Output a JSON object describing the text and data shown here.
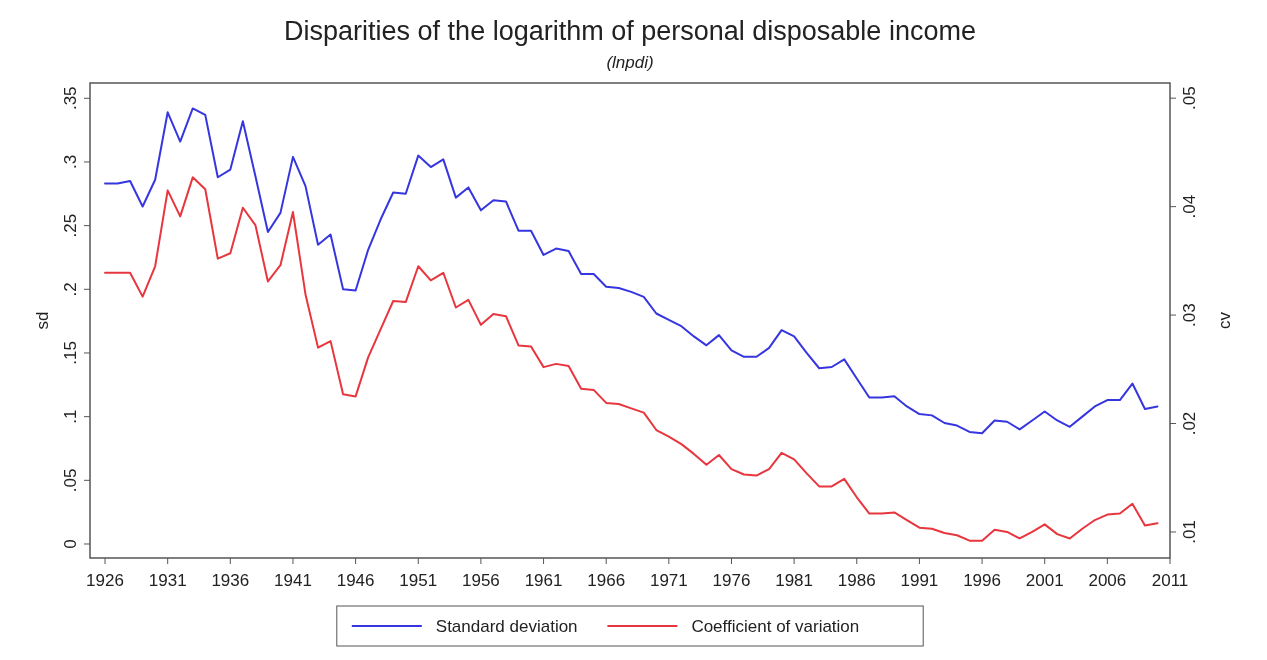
{
  "chart_data": {
    "type": "line",
    "title": "Disparities of the logarithm of personal disposable income",
    "subtitle": "(lnpdi)",
    "ylabel": "sd",
    "y2label": "cv",
    "x": [
      1926,
      1927,
      1928,
      1929,
      1930,
      1931,
      1932,
      1933,
      1934,
      1935,
      1936,
      1937,
      1938,
      1939,
      1940,
      1941,
      1942,
      1943,
      1944,
      1945,
      1946,
      1947,
      1948,
      1949,
      1950,
      1951,
      1952,
      1953,
      1954,
      1955,
      1956,
      1957,
      1958,
      1959,
      1960,
      1961,
      1962,
      1963,
      1964,
      1965,
      1966,
      1967,
      1968,
      1969,
      1970,
      1971,
      1972,
      1973,
      1974,
      1975,
      1976,
      1977,
      1978,
      1979,
      1980,
      1981,
      1982,
      1983,
      1984,
      1985,
      1986,
      1987,
      1988,
      1989,
      1990,
      1991,
      1992,
      1993,
      1994,
      1995,
      1996,
      1997,
      1998,
      1999,
      2000,
      2001,
      2002,
      2003,
      2004,
      2005,
      2006,
      2007,
      2008,
      2009,
      2010
    ],
    "series": [
      {
        "name": "Standard deviation",
        "color": "#3636e0",
        "values": [
          0.283,
          0.283,
          0.285,
          0.265,
          0.286,
          0.339,
          0.316,
          0.342,
          0.337,
          0.288,
          0.294,
          0.332,
          0.289,
          0.245,
          0.26,
          0.304,
          0.281,
          0.235,
          0.243,
          0.2,
          0.199,
          0.231,
          0.255,
          0.276,
          0.275,
          0.305,
          0.296,
          0.302,
          0.272,
          0.28,
          0.262,
          0.27,
          0.269,
          0.246,
          0.246,
          0.227,
          0.232,
          0.23,
          0.212,
          0.212,
          0.202,
          0.201,
          0.198,
          0.194,
          0.181,
          0.176,
          0.171,
          0.163,
          0.156,
          0.164,
          0.152,
          0.147,
          0.147,
          0.154,
          0.168,
          0.163,
          0.15,
          0.138,
          0.139,
          0.145,
          0.13,
          0.115,
          0.115,
          0.116,
          0.108,
          0.102,
          0.101,
          0.095,
          0.093,
          0.088,
          0.087,
          0.097,
          0.096,
          0.09,
          0.097,
          0.104,
          0.097,
          0.092,
          0.1,
          0.108,
          0.113,
          0.113,
          0.126,
          0.106,
          0.108
        ]
      },
      {
        "name": "Coefficient of variation",
        "color": "#e8363e",
        "axis": "y2",
        "values": [
          0.0339,
          0.0339,
          0.0339,
          0.0317,
          0.0345,
          0.0415,
          0.0391,
          0.0427,
          0.0416,
          0.0352,
          0.0357,
          0.0399,
          0.0383,
          0.0331,
          0.0346,
          0.0395,
          0.0319,
          0.027,
          0.0276,
          0.0227,
          0.0225,
          0.0261,
          0.0287,
          0.0313,
          0.0312,
          0.0345,
          0.0332,
          0.0339,
          0.0307,
          0.0314,
          0.0291,
          0.0301,
          0.0299,
          0.0272,
          0.0271,
          0.0252,
          0.0255,
          0.0253,
          0.0232,
          0.0231,
          0.0219,
          0.0218,
          0.0214,
          0.021,
          0.0194,
          0.0188,
          0.0181,
          0.0172,
          0.0162,
          0.0171,
          0.0158,
          0.0153,
          0.0152,
          0.0158,
          0.0173,
          0.0167,
          0.0154,
          0.0142,
          0.0142,
          0.0149,
          0.0132,
          0.0117,
          0.0117,
          0.0118,
          0.0111,
          0.0104,
          0.0103,
          0.0099,
          0.0097,
          0.0092,
          0.0092,
          0.0102,
          0.01,
          0.0094,
          0.01,
          0.0107,
          0.0098,
          0.0094,
          0.0103,
          0.0111,
          0.0116,
          0.0117,
          0.0126,
          0.0106,
          0.0108
        ]
      }
    ],
    "xlim": [
      1924.8,
      2011
    ],
    "xticks": [
      1926,
      1931,
      1936,
      1941,
      1946,
      1951,
      1956,
      1961,
      1966,
      1971,
      1976,
      1981,
      1986,
      1991,
      1996,
      2001,
      2006,
      2011
    ],
    "ylim": [
      -0.011,
      0.362
    ],
    "yticks": [
      {
        "value": 0,
        "label": "0"
      },
      {
        "value": 0.05,
        "label": ".05"
      },
      {
        "value": 0.1,
        "label": ".1"
      },
      {
        "value": 0.15,
        "label": ".15"
      },
      {
        "value": 0.2,
        "label": ".2"
      },
      {
        "value": 0.25,
        "label": ".25"
      },
      {
        "value": 0.3,
        "label": ".3"
      },
      {
        "value": 0.35,
        "label": ".35"
      }
    ],
    "y2lim": [
      0.0076,
      0.0514
    ],
    "y2ticks": [
      {
        "value": 0.01,
        "label": ".01"
      },
      {
        "value": 0.02,
        "label": ".02"
      },
      {
        "value": 0.03,
        "label": ".03"
      },
      {
        "value": 0.04,
        "label": ".04"
      },
      {
        "value": 0.05,
        "label": ".05"
      }
    ],
    "grid": false,
    "legend": "bottom",
    "marker": "none",
    "line_style": "solid"
  }
}
